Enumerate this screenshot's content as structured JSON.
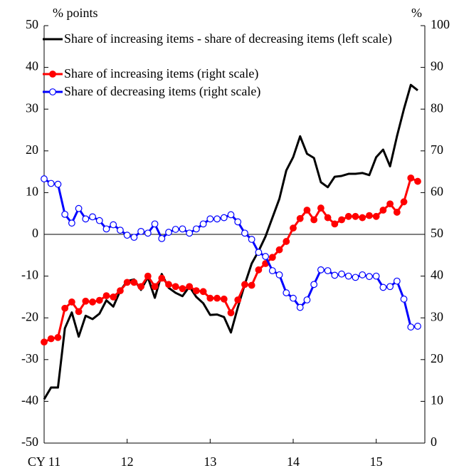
{
  "chart_data": {
    "type": "line",
    "ylabel": "% points",
    "y2label": "%",
    "categories": [
      "CY 11",
      null,
      null,
      null,
      null,
      null,
      null,
      null,
      null,
      null,
      null,
      null,
      "12",
      null,
      null,
      null,
      null,
      null,
      null,
      null,
      null,
      null,
      null,
      null,
      "13",
      null,
      null,
      null,
      null,
      null,
      null,
      null,
      null,
      null,
      null,
      null,
      "14",
      null,
      null,
      null,
      null,
      null,
      null,
      null,
      null,
      null,
      null,
      null,
      "15",
      null,
      null,
      null,
      null,
      null,
      null
    ],
    "ylim": [
      -50,
      50
    ],
    "yticks": [
      -50,
      -40,
      -30,
      -20,
      -10,
      0,
      10,
      20,
      30,
      40,
      50
    ],
    "y2lim": [
      0,
      100
    ],
    "y2ticks": [
      0,
      10,
      20,
      30,
      40,
      50,
      60,
      70,
      80,
      90,
      100
    ],
    "series": [
      {
        "name": "Share of increasing items - share of decreasing items (left scale)",
        "color": "#000000",
        "marker": "none",
        "values": [
          -39.5,
          -36.7,
          -36.7,
          -22.5,
          -18.7,
          -24.5,
          -19.5,
          -20.3,
          -19,
          -15.8,
          -17.3,
          -13.5,
          -11.2,
          -10.8,
          -13.3,
          -10.3,
          -15.2,
          -9.5,
          -12.8,
          -14,
          -14.8,
          -12.5,
          -15,
          -16.5,
          -19.3,
          -19.2,
          -19.8,
          -23.5,
          -17.5,
          -12,
          -7,
          -4,
          -0.5,
          4,
          8.5,
          15.3,
          18.5,
          23.5,
          19.3,
          18.3,
          12.5,
          11.3,
          13.8,
          14,
          14.5,
          14.5,
          14.7,
          14.2,
          18.5,
          20.3,
          16.3,
          23.5,
          30,
          35.8,
          34.5
        ]
      },
      {
        "name": "Share of increasing items (right scale)",
        "color": "#ff0000",
        "marker": "filled",
        "axis": "y2",
        "values": [
          24.2,
          25,
          25.3,
          32.3,
          33.8,
          31.5,
          34,
          33.8,
          34.2,
          35.3,
          35,
          36.5,
          38.5,
          38.5,
          37.5,
          40,
          37.5,
          39.5,
          38,
          37.5,
          37,
          37.5,
          36.5,
          36.3,
          34.7,
          34.7,
          34.5,
          31.2,
          34.3,
          38,
          37.8,
          41.5,
          43,
          44.5,
          46.3,
          48.3,
          51.5,
          53.8,
          55.8,
          53.5,
          56.3,
          54,
          52.5,
          53.5,
          54.3,
          54.3,
          54,
          54.5,
          54.3,
          55.8,
          57.3,
          55.3,
          57.8,
          63.5,
          62.7
        ]
      },
      {
        "name": "Share of decreasing items (right scale)",
        "color": "#0000ff",
        "marker": "open",
        "axis": "y2",
        "values": [
          63.3,
          62.2,
          62,
          54.8,
          52.7,
          56.2,
          53.7,
          54.2,
          53.3,
          51.3,
          52.3,
          51,
          49.8,
          49.3,
          50.7,
          50.3,
          52.5,
          49,
          50.5,
          51.2,
          51.3,
          50.3,
          51.3,
          52.5,
          53.7,
          53.7,
          54,
          54.7,
          53,
          50.3,
          48.8,
          45.7,
          44.7,
          41.3,
          40.3,
          36,
          34.7,
          32.5,
          34.3,
          38,
          41.5,
          41.3,
          40.2,
          40.5,
          40,
          39.7,
          40.3,
          39.9,
          40,
          37.3,
          37.5,
          38.8,
          34.5,
          27.8,
          28
        ]
      }
    ]
  }
}
